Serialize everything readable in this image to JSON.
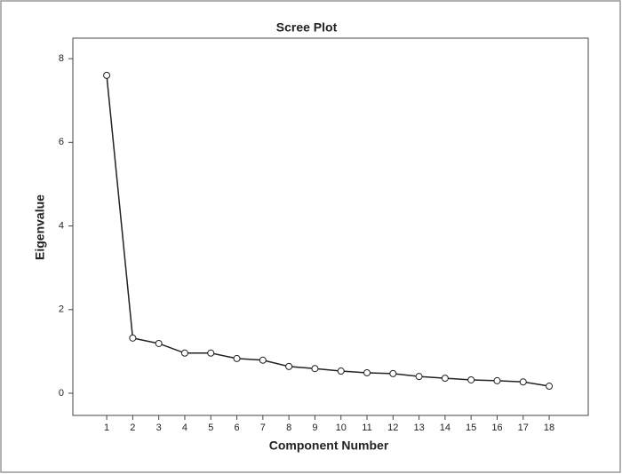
{
  "chart_data": {
    "type": "line",
    "title": "Scree Plot",
    "x_label": "Component Number",
    "y_label": "Eigenvalue",
    "x": [
      1,
      2,
      3,
      4,
      5,
      6,
      7,
      8,
      9,
      10,
      11,
      12,
      13,
      14,
      15,
      16,
      17,
      18
    ],
    "series": [
      {
        "name": "Eigenvalue",
        "color": "#222222",
        "values": [
          7.6,
          1.32,
          1.19,
          0.96,
          0.96,
          0.83,
          0.79,
          0.64,
          0.59,
          0.53,
          0.49,
          0.47,
          0.4,
          0.36,
          0.32,
          0.3,
          0.27,
          0.17
        ]
      }
    ],
    "xlim": [
      -0.3,
      19.5
    ],
    "xticks": [
      1,
      2,
      3,
      4,
      5,
      6,
      7,
      8,
      9,
      10,
      11,
      12,
      13,
      14,
      15,
      16,
      17,
      18
    ],
    "ylim": [
      -0.53,
      8.49
    ],
    "yticks": [
      0,
      2,
      4,
      6,
      8
    ],
    "grid": false
  }
}
